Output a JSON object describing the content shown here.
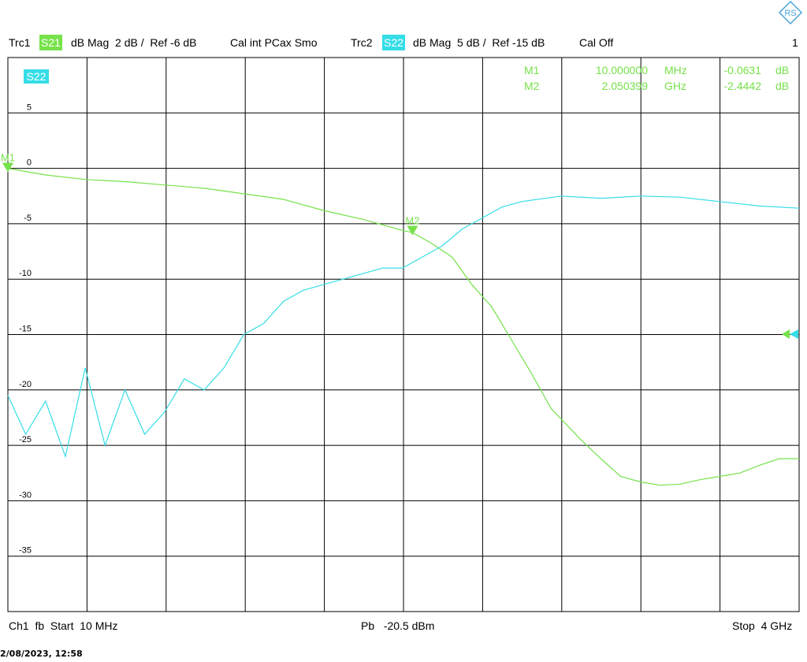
{
  "header": {
    "trc1": "Trc1",
    "trc1_param": "S21",
    "trc1_info": "dB Mag  2 dB /  Ref -6 dB",
    "trc1_cal": "Cal int PCax Smo",
    "trc2": "Trc2",
    "trc2_param": "S22",
    "trc2_info": "dB Mag  5 dB /  Ref -15 dB",
    "trc2_cal": "Cal Off",
    "window_number": "1"
  },
  "footer": {
    "channel": "Ch1  fb  Start  10 MHz",
    "power": "Pb   -20.5 dBm",
    "stop": "Stop  4 GHz",
    "timestamp": "2/08/2023, 12:58"
  },
  "logo_icon": "rohde-schwarz-logo-icon",
  "colors": {
    "s21": "#76e24a",
    "s22": "#35dde7",
    "grid": "#000000"
  },
  "chart_data": {
    "type": "line",
    "title": "",
    "xlabel": "",
    "ylabel": "",
    "xlim": [
      0.01,
      4.0
    ],
    "x_unit": "GHz",
    "ylim": [
      -40,
      10
    ],
    "y_ticks": [
      5,
      0,
      -5,
      -10,
      -15,
      -20,
      -25,
      -30,
      -35
    ],
    "grid": true,
    "trace_label": "S22",
    "series": [
      {
        "name": "S21",
        "x": [
          0.01,
          0.2,
          0.4,
          0.6,
          0.8,
          1.0,
          1.2,
          1.4,
          1.6,
          1.8,
          2.0,
          2.05,
          2.15,
          2.25,
          2.35,
          2.45,
          2.55,
          2.65,
          2.75,
          2.9,
          3.0,
          3.1,
          3.2,
          3.3,
          3.4,
          3.5,
          3.6,
          3.7,
          3.8,
          3.9,
          4.0
        ],
        "y": [
          0,
          -0.6,
          -1.0,
          -1.2,
          -1.5,
          -1.8,
          -2.3,
          -2.8,
          -3.8,
          -4.6,
          -5.6,
          -5.8,
          -6.8,
          -8.0,
          -10.5,
          -12.5,
          -15.5,
          -18.5,
          -21.7,
          -24.5,
          -26.2,
          -27.8,
          -28.3,
          -28.6,
          -28.5,
          -28.1,
          -27.8,
          -27.5,
          -26.8,
          -26.2,
          -26.2
        ]
      },
      {
        "name": "S22",
        "x": [
          0.01,
          0.1,
          0.2,
          0.3,
          0.4,
          0.5,
          0.6,
          0.7,
          0.8,
          0.9,
          1.0,
          1.1,
          1.2,
          1.3,
          1.4,
          1.5,
          1.6,
          1.7,
          1.8,
          1.9,
          2.0,
          2.1,
          2.2,
          2.3,
          2.4,
          2.5,
          2.6,
          2.8,
          3.0,
          3.2,
          3.4,
          3.6,
          3.8,
          4.0
        ],
        "y": [
          -20.5,
          -24,
          -21,
          -26,
          -18,
          -25,
          -20,
          -24,
          -22,
          -19,
          -20,
          -18,
          -15,
          -14,
          -12,
          -11,
          -10.5,
          -10,
          -9.5,
          -9,
          -9,
          -8,
          -7,
          -5.5,
          -4.5,
          -3.5,
          -3,
          -2.5,
          -2.7,
          -2.5,
          -2.6,
          -3,
          -3.4,
          -3.6
        ]
      }
    ],
    "markers": [
      {
        "name": "M1",
        "x_label": "10.000000",
        "x_unit": "MHz",
        "value": "-0.0631",
        "unit": "dB",
        "x": 0.01,
        "y": -0.0631
      },
      {
        "name": "M2",
        "x_label": "2.050399",
        "x_unit": "GHz",
        "value": "-2.4442",
        "unit": "dB",
        "x": 2.050399,
        "y": -5.75
      }
    ]
  }
}
